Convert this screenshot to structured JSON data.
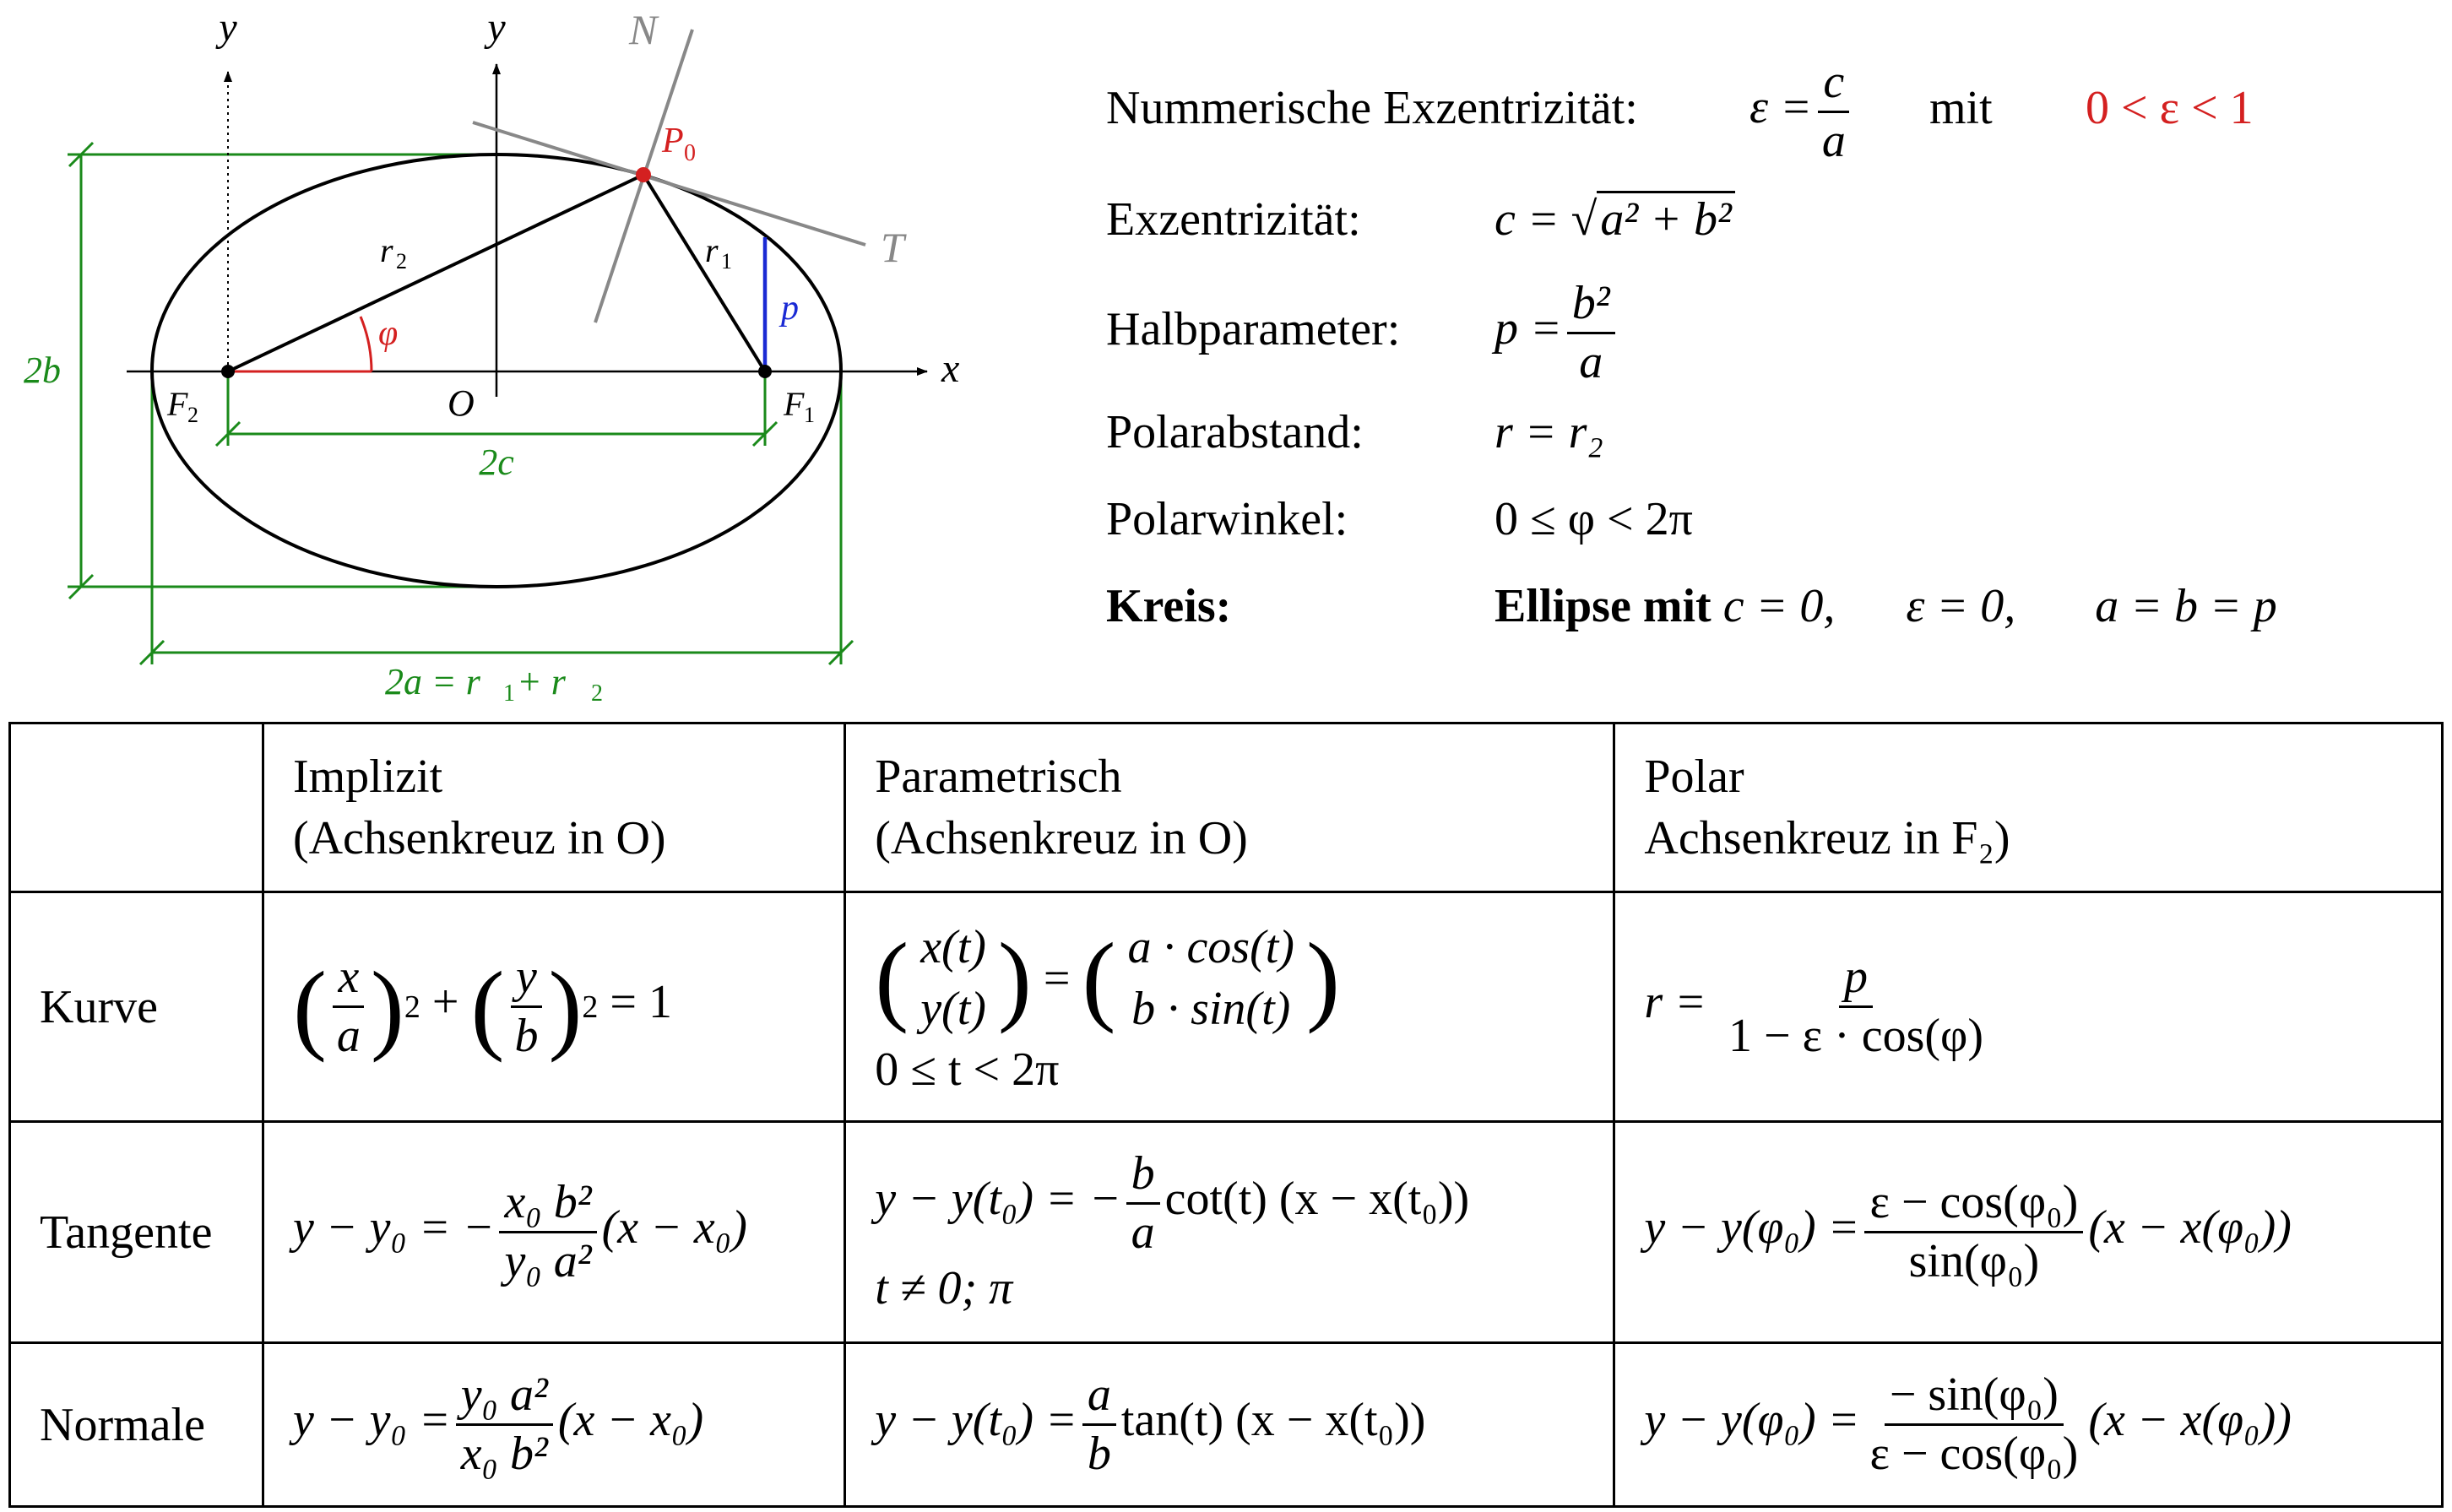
{
  "diagram": {
    "axis_y_left": "y",
    "axis_y_center": "y",
    "axis_x": "x",
    "normal_label": "N",
    "tangent_label": "T",
    "point_label": "P",
    "point_sub": "0",
    "r2_label": "r",
    "r2_sub": "2",
    "r1_label": "r",
    "r1_sub": "1",
    "p_label": "p",
    "phi_label": "φ",
    "label_2b": "2b",
    "origin_label": "O",
    "f2_label": "F",
    "f2_sub": "2",
    "f1_label": "F",
    "f1_sub": "1",
    "label_2c": "2c",
    "label_2a": "2a = r",
    "label_2a_sub1": "1",
    "label_2a_mid": " + r",
    "label_2a_sub2": "2",
    "colors": {
      "green": "#1a8a1a",
      "red": "#d42020",
      "blue": "#1a2ad4",
      "gray": "#888888"
    }
  },
  "properties": {
    "num_ecc_label": "Nummerische Exzentrizität:",
    "num_ecc_lhs": "ε =",
    "num_ecc_num": "c",
    "num_ecc_den": "a",
    "num_ecc_mit": "mit",
    "num_ecc_range": "0 < ε < 1",
    "ecc_label": "Exzentrizität:",
    "ecc_lhs": "c =",
    "ecc_rad": "a² + b²",
    "half_label": "Halbparameter:",
    "half_lhs": "p =",
    "half_num": "b²",
    "half_den": "a",
    "polar_dist_label": "Polarabstand:",
    "polar_dist_val": "r = r₂",
    "polar_angle_label": "Polarwinkel:",
    "polar_angle_val": "0 ≤ φ < 2π",
    "circle_label": "Kreis:",
    "circle_bold": "Ellipse mit",
    "circle_c": "c = 0,",
    "circle_eps": "ε = 0,",
    "circle_ab": "a = b = p"
  },
  "table": {
    "header": {
      "implicit_1": "Implizit",
      "implicit_2": "(Achsenkreuz in O)",
      "param_1": "Parametrisch",
      "param_2": "(Achsenkreuz in O)",
      "polar_1": "Polar",
      "polar_2": "Achsenkreuz in F₂)"
    },
    "rows": {
      "curve": "Kurve",
      "tangent": "Tangente",
      "normal": "Normale"
    },
    "curve_implicit": {
      "x": "x",
      "a": "a",
      "y": "y",
      "b": "b",
      "sq": "2",
      "plus": "+",
      "eq": "= 1"
    },
    "curve_param": {
      "xt": "x(t)",
      "yt": "y(t)",
      "eq": "=",
      "acos": "a · cos(t)",
      "bsin": "b · sin(t)",
      "range": "0 ≤ t < 2π"
    },
    "curve_polar": {
      "lhs": "r =",
      "num": "p",
      "den": "1 − ε · cos(φ)"
    },
    "tangent_implicit": {
      "lhs": "y − y₀ = −",
      "num": "x₀ b²",
      "den": "y₀ a²",
      "rhs": "(x − x₀)"
    },
    "tangent_param": {
      "lhs": "y − y(t₀) = −",
      "num": "b",
      "den": "a",
      "rhs": "cot(t) (x − x(t₀))",
      "cond": "t ≠ 0; π"
    },
    "tangent_polar": {
      "lhs": "y − y(φ₀) =",
      "num": "ε − cos(φ₀)",
      "den": "sin(φ₀)",
      "rhs": "(x − x(φ₀))"
    },
    "normal_implicit": {
      "lhs": "y − y₀ =",
      "num": "y₀ a²",
      "den": "x₀ b²",
      "rhs": "(x − x₀)"
    },
    "normal_param": {
      "lhs": "y − y(t₀) =",
      "num": "a",
      "den": "b",
      "rhs": "tan(t) (x − x(t₀))"
    },
    "normal_polar": {
      "lhs": "y − y(φ₀) =",
      "num": "− sin(φ₀)",
      "den": "ε − cos(φ₀)",
      "rhs": "(x − x(φ₀))"
    }
  }
}
